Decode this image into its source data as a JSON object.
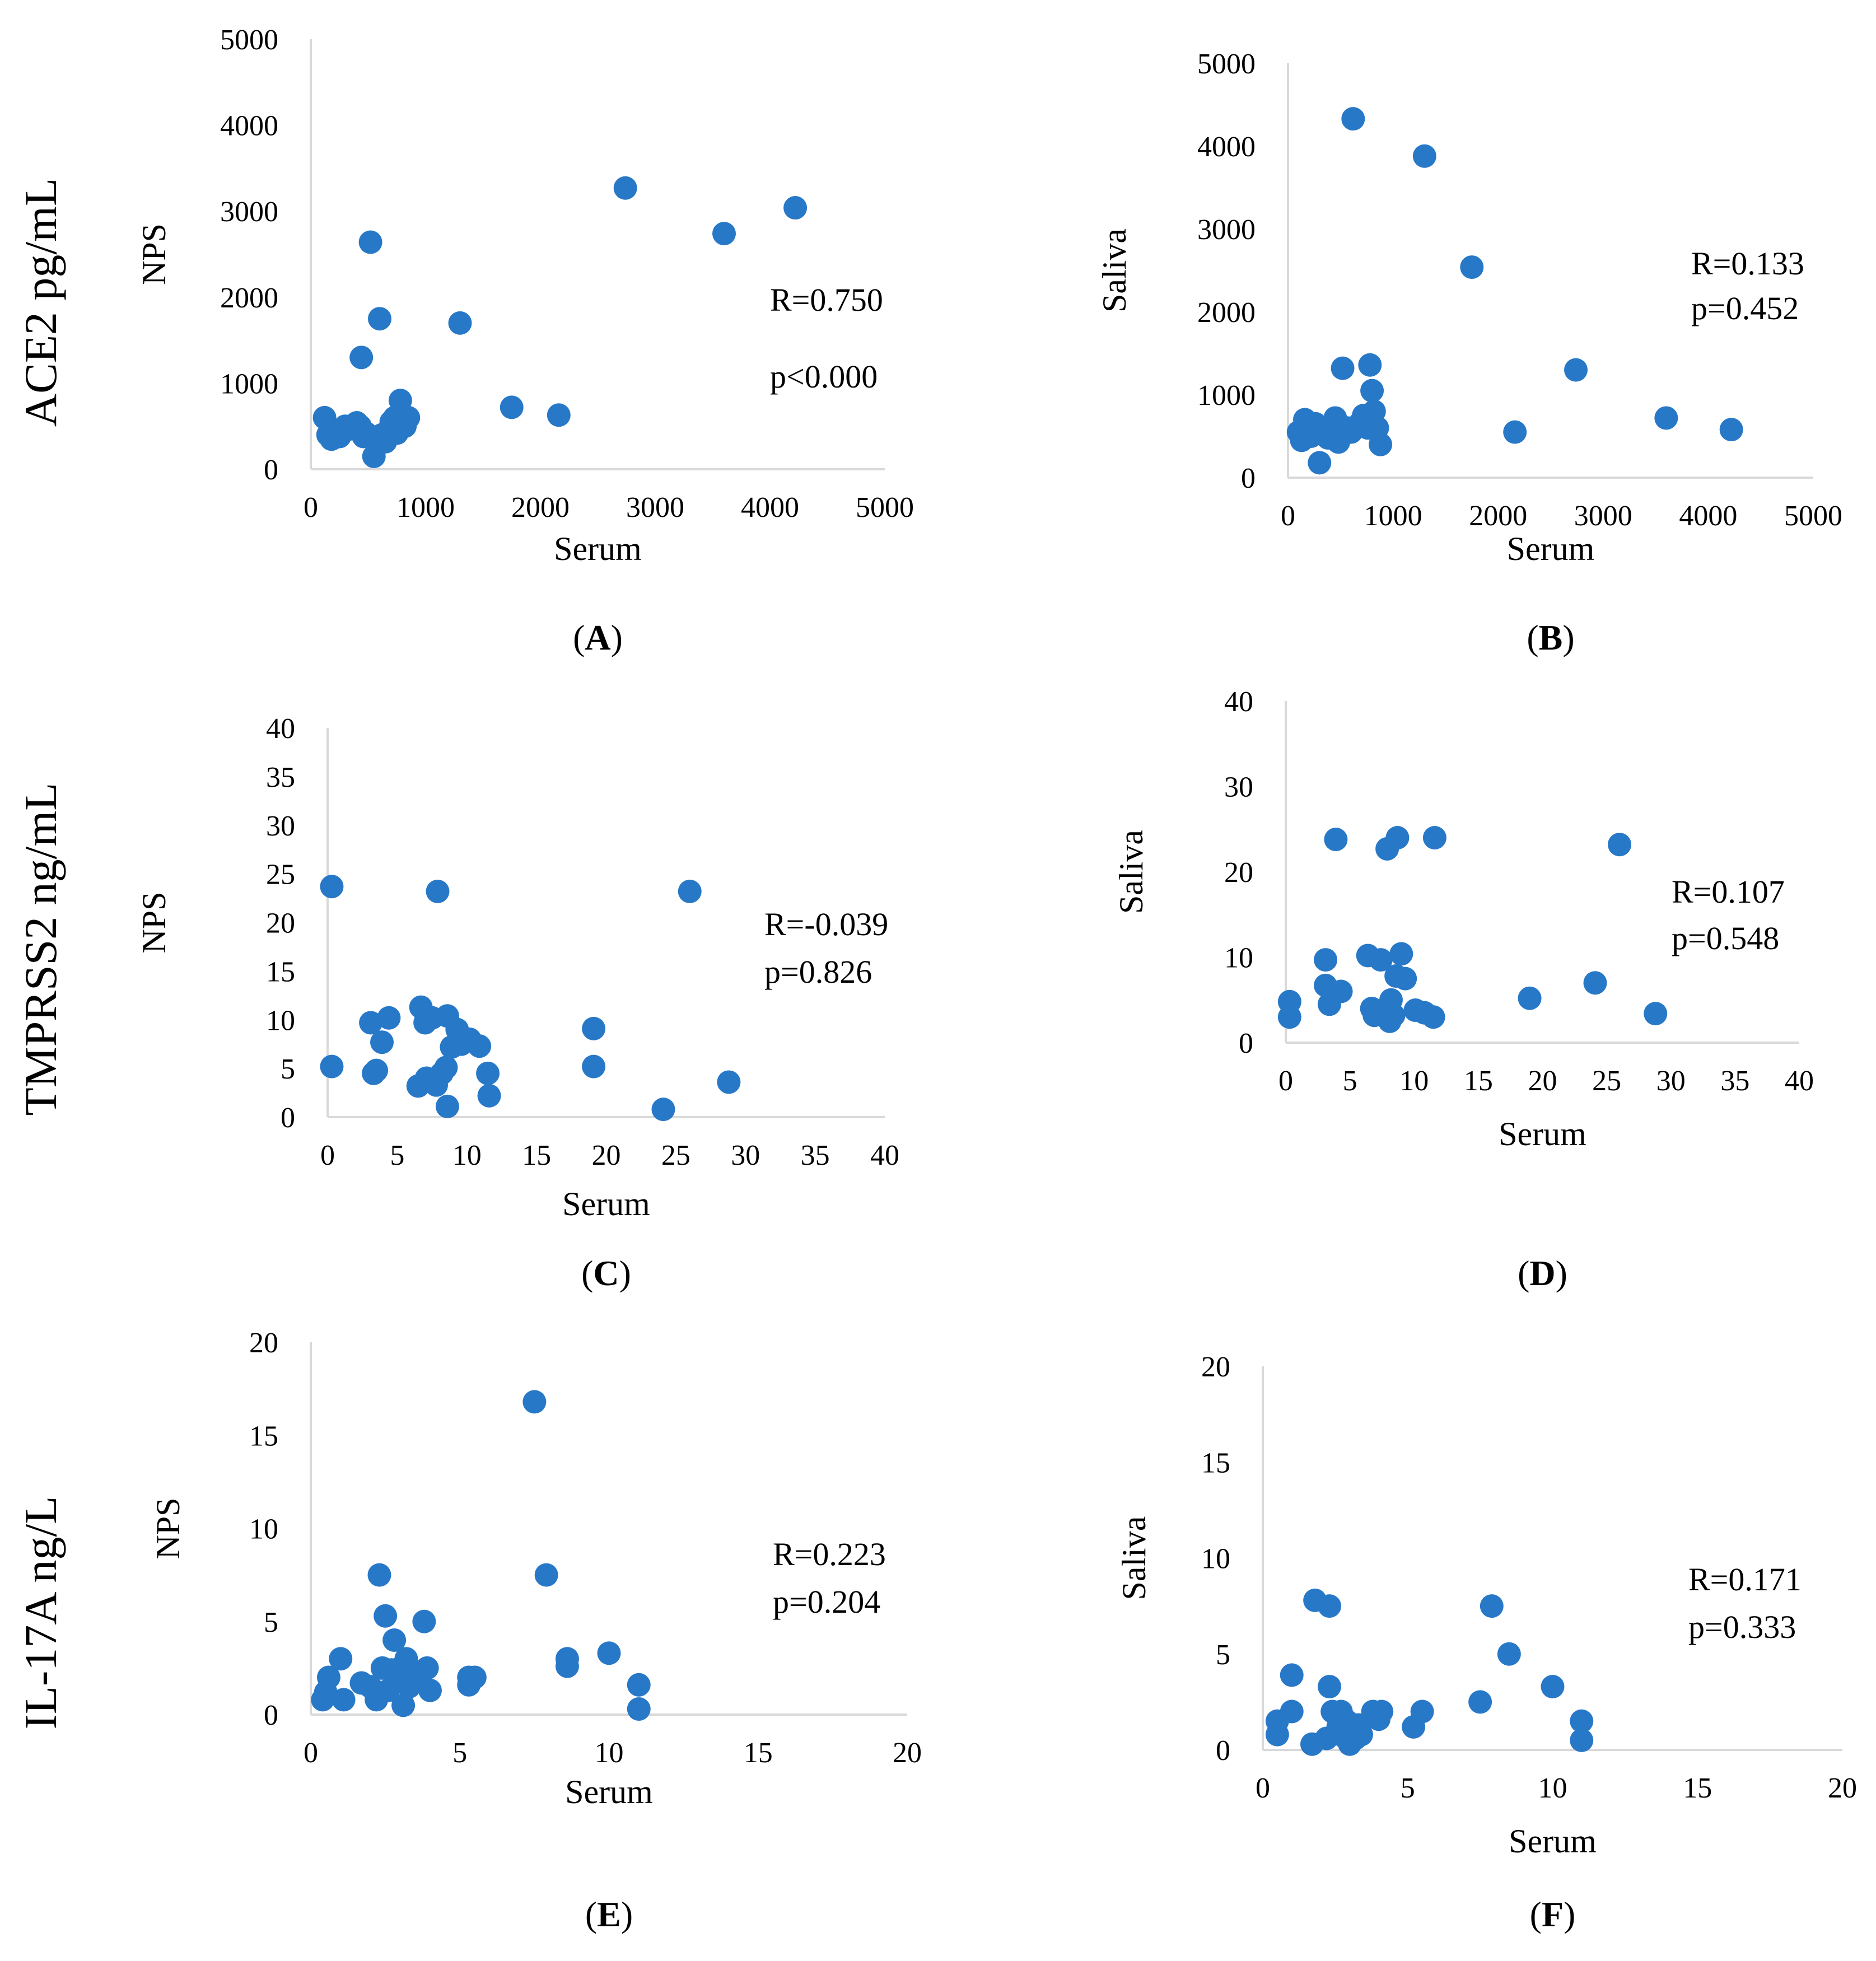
{
  "row_labels": [
    "ACE2 pg/mL",
    "TMPRSS2 ng/mL",
    "IL-17A ng/L"
  ],
  "chart_data": [
    {
      "type": "scatter",
      "panel": "(A)",
      "panel_letter": "A",
      "xlabel": "Serum",
      "ylabel": "NPS",
      "xlim": [
        0,
        5000
      ],
      "ylim": [
        0,
        5000
      ],
      "xticks": [
        0,
        1000,
        2000,
        3000,
        4000,
        5000
      ],
      "yticks": [
        0,
        1000,
        2000,
        3000,
        4000,
        5000
      ],
      "stats": [
        "R=0.750",
        "p<0.000"
      ],
      "color": "#2878C8",
      "points": [
        [
          120,
          600
        ],
        [
          150,
          400
        ],
        [
          180,
          350
        ],
        [
          200,
          450
        ],
        [
          250,
          380
        ],
        [
          300,
          500
        ],
        [
          350,
          470
        ],
        [
          400,
          540
        ],
        [
          430,
          500
        ],
        [
          460,
          380
        ],
        [
          480,
          420
        ],
        [
          520,
          2640
        ],
        [
          550,
          150
        ],
        [
          580,
          300
        ],
        [
          600,
          1750
        ],
        [
          620,
          400
        ],
        [
          650,
          320
        ],
        [
          700,
          550
        ],
        [
          730,
          600
        ],
        [
          750,
          420
        ],
        [
          780,
          800
        ],
        [
          820,
          500
        ],
        [
          850,
          600
        ],
        [
          440,
          1300
        ],
        [
          1300,
          1700
        ],
        [
          1750,
          720
        ],
        [
          2160,
          630
        ],
        [
          2740,
          3270
        ],
        [
          3600,
          2740
        ],
        [
          4220,
          3040
        ]
      ]
    },
    {
      "type": "scatter",
      "panel": "(B)",
      "panel_letter": "B",
      "xlabel": "Serum",
      "ylabel": "Saliva",
      "xlim": [
        0,
        5000
      ],
      "ylim": [
        0,
        5000
      ],
      "xticks": [
        0,
        1000,
        2000,
        3000,
        4000,
        5000
      ],
      "yticks": [
        0,
        1000,
        2000,
        3000,
        4000,
        5000
      ],
      "stats": [
        "R=0.133",
        "p=0.452"
      ],
      "color": "#2878C8",
      "points": [
        [
          100,
          550
        ],
        [
          130,
          450
        ],
        [
          160,
          700
        ],
        [
          190,
          600
        ],
        [
          220,
          500
        ],
        [
          260,
          650
        ],
        [
          300,
          180
        ],
        [
          330,
          550
        ],
        [
          380,
          480
        ],
        [
          420,
          600
        ],
        [
          450,
          720
        ],
        [
          480,
          430
        ],
        [
          520,
          1320
        ],
        [
          560,
          600
        ],
        [
          600,
          550
        ],
        [
          620,
          4330
        ],
        [
          680,
          650
        ],
        [
          720,
          750
        ],
        [
          760,
          600
        ],
        [
          780,
          1360
        ],
        [
          800,
          1050
        ],
        [
          820,
          800
        ],
        [
          850,
          600
        ],
        [
          880,
          400
        ],
        [
          1300,
          3880
        ],
        [
          1750,
          2540
        ],
        [
          2160,
          550
        ],
        [
          2740,
          1300
        ],
        [
          3600,
          720
        ],
        [
          4220,
          580
        ]
      ]
    },
    {
      "type": "scatter",
      "panel": "(C)",
      "panel_letter": "C",
      "xlabel": "Serum",
      "ylabel": "NPS",
      "xlim": [
        0,
        40
      ],
      "ylim": [
        0,
        40
      ],
      "xticks": [
        0,
        5,
        10,
        15,
        20,
        25,
        30,
        35,
        40
      ],
      "yticks": [
        0,
        5,
        10,
        15,
        20,
        25,
        30,
        35,
        40
      ],
      "stats": [
        "R=-0.039",
        "p=0.826"
      ],
      "color": "#2878C8",
      "points": [
        [
          0.3,
          5.2
        ],
        [
          0.3,
          23.7
        ],
        [
          3.1,
          9.7
        ],
        [
          3.3,
          4.5
        ],
        [
          3.5,
          4.8
        ],
        [
          3.9,
          7.7
        ],
        [
          4.4,
          10.2
        ],
        [
          6.5,
          3.2
        ],
        [
          6.7,
          11.3
        ],
        [
          7.0,
          9.7
        ],
        [
          7.1,
          4.0
        ],
        [
          7.5,
          10.2
        ],
        [
          7.8,
          3.3
        ],
        [
          7.9,
          23.2
        ],
        [
          8.2,
          4.5
        ],
        [
          8.5,
          5.1
        ],
        [
          8.6,
          10.4
        ],
        [
          8.6,
          1.1
        ],
        [
          8.9,
          7.2
        ],
        [
          9.3,
          9.0
        ],
        [
          9.6,
          7.5
        ],
        [
          10.2,
          8.0
        ],
        [
          10.9,
          7.3
        ],
        [
          11.5,
          4.5
        ],
        [
          11.6,
          2.2
        ],
        [
          19.1,
          9.1
        ],
        [
          19.1,
          5.2
        ],
        [
          24.1,
          0.8
        ],
        [
          26.0,
          23.2
        ],
        [
          28.8,
          3.6
        ]
      ]
    },
    {
      "type": "scatter",
      "panel": "(D)",
      "panel_letter": "D",
      "xlabel": "Serum",
      "ylabel": "Saliva",
      "xlim": [
        0,
        40
      ],
      "ylim": [
        0,
        40
      ],
      "xticks": [
        0,
        5,
        10,
        15,
        20,
        25,
        30,
        35,
        40
      ],
      "yticks": [
        0,
        10,
        20,
        30,
        40
      ],
      "stats": [
        "R=0.107",
        "p=0.548"
      ],
      "color": "#2878C8",
      "points": [
        [
          0.3,
          4.8
        ],
        [
          0.3,
          3.0
        ],
        [
          3.1,
          9.7
        ],
        [
          3.1,
          6.7
        ],
        [
          3.4,
          4.5
        ],
        [
          3.9,
          23.8
        ],
        [
          4.3,
          6.0
        ],
        [
          6.4,
          10.2
        ],
        [
          6.7,
          4.0
        ],
        [
          6.9,
          3.2
        ],
        [
          7.0,
          3.6
        ],
        [
          7.4,
          9.7
        ],
        [
          7.9,
          22.7
        ],
        [
          8.0,
          4.0
        ],
        [
          8.1,
          2.5
        ],
        [
          8.2,
          5.0
        ],
        [
          8.4,
          3.2
        ],
        [
          8.6,
          7.8
        ],
        [
          8.7,
          24.0
        ],
        [
          9.0,
          10.4
        ],
        [
          9.3,
          7.5
        ],
        [
          10.1,
          3.8
        ],
        [
          10.8,
          3.5
        ],
        [
          11.5,
          3.0
        ],
        [
          11.6,
          24.0
        ],
        [
          19.0,
          5.2
        ],
        [
          24.1,
          7.0
        ],
        [
          26.0,
          23.2
        ],
        [
          28.8,
          3.4
        ]
      ]
    },
    {
      "type": "scatter",
      "panel": "(E)",
      "panel_letter": "E",
      "xlabel": "Serum",
      "ylabel": "NPS",
      "xlim": [
        0,
        20
      ],
      "ylim": [
        0,
        20
      ],
      "xticks": [
        0,
        5,
        10,
        15,
        20
      ],
      "yticks": [
        0,
        5,
        10,
        15,
        20
      ],
      "stats": [
        "R=0.223",
        "p=0.204"
      ],
      "color": "#2878C8",
      "points": [
        [
          0.4,
          0.8
        ],
        [
          0.5,
          1.2
        ],
        [
          0.6,
          2.0
        ],
        [
          1.0,
          3.0
        ],
        [
          1.1,
          0.8
        ],
        [
          1.7,
          1.7
        ],
        [
          2.0,
          1.5
        ],
        [
          2.2,
          0.8
        ],
        [
          2.3,
          7.5
        ],
        [
          2.4,
          2.5
        ],
        [
          2.5,
          5.3
        ],
        [
          2.6,
          1.3
        ],
        [
          2.7,
          2.4
        ],
        [
          2.8,
          4.0
        ],
        [
          2.9,
          1.8
        ],
        [
          3.0,
          2.5
        ],
        [
          3.1,
          0.5
        ],
        [
          3.2,
          3.0
        ],
        [
          3.3,
          1.5
        ],
        [
          3.5,
          2.0
        ],
        [
          3.8,
          5.0
        ],
        [
          3.9,
          2.5
        ],
        [
          4.0,
          1.3
        ],
        [
          5.3,
          1.6
        ],
        [
          5.3,
          2.0
        ],
        [
          5.5,
          2.0
        ],
        [
          7.5,
          16.8
        ],
        [
          7.9,
          7.5
        ],
        [
          8.6,
          3.0
        ],
        [
          8.6,
          2.6
        ],
        [
          10.0,
          3.3
        ],
        [
          11.0,
          1.6
        ],
        [
          11.0,
          0.3
        ]
      ]
    },
    {
      "type": "scatter",
      "panel": "(F)",
      "panel_letter": "F",
      "xlabel": "Serum",
      "ylabel": "Saliva",
      "xlim": [
        0,
        20
      ],
      "ylim": [
        0,
        20
      ],
      "xticks": [
        0,
        5,
        10,
        15,
        20
      ],
      "yticks": [
        0,
        5,
        10,
        15,
        20
      ],
      "stats": [
        "R=0.171",
        "p=0.333"
      ],
      "color": "#2878C8",
      "points": [
        [
          0.5,
          1.5
        ],
        [
          0.5,
          0.8
        ],
        [
          1.0,
          2.0
        ],
        [
          1.0,
          3.9
        ],
        [
          1.7,
          0.3
        ],
        [
          1.8,
          7.8
        ],
        [
          2.2,
          0.6
        ],
        [
          2.3,
          7.5
        ],
        [
          2.3,
          3.3
        ],
        [
          2.4,
          2.0
        ],
        [
          2.6,
          1.2
        ],
        [
          2.7,
          2.0
        ],
        [
          2.8,
          0.7
        ],
        [
          2.9,
          1.5
        ],
        [
          3.0,
          0.3
        ],
        [
          3.1,
          1.0
        ],
        [
          3.2,
          0.6
        ],
        [
          3.3,
          1.3
        ],
        [
          3.4,
          0.8
        ],
        [
          3.8,
          2.0
        ],
        [
          4.0,
          1.6
        ],
        [
          4.1,
          2.0
        ],
        [
          5.2,
          1.2
        ],
        [
          5.5,
          2.0
        ],
        [
          7.5,
          2.5
        ],
        [
          7.9,
          7.5
        ],
        [
          8.5,
          5.0
        ],
        [
          10.0,
          3.3
        ],
        [
          11.0,
          1.5
        ],
        [
          11.0,
          0.5
        ]
      ]
    }
  ]
}
